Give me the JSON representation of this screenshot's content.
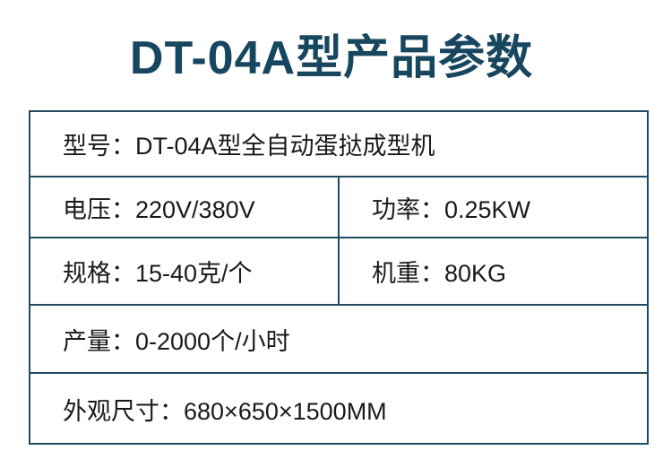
{
  "title": "DT-04A型产品参数",
  "rows": [
    {
      "cells": [
        "型号：DT-04A型全自动蛋挞成型机"
      ]
    },
    {
      "cells": [
        "电压：220V/380V",
        "功率：0.25KW"
      ]
    },
    {
      "cells": [
        "规格：15-40克/个",
        "机重：80KG"
      ]
    },
    {
      "cells": [
        "产量：0-2000个/小时"
      ]
    },
    {
      "cells": [
        "外观尺寸：680×650×1500MM"
      ]
    }
  ],
  "colors": {
    "title": "#17475e",
    "border": "#1f4a5f"
  }
}
